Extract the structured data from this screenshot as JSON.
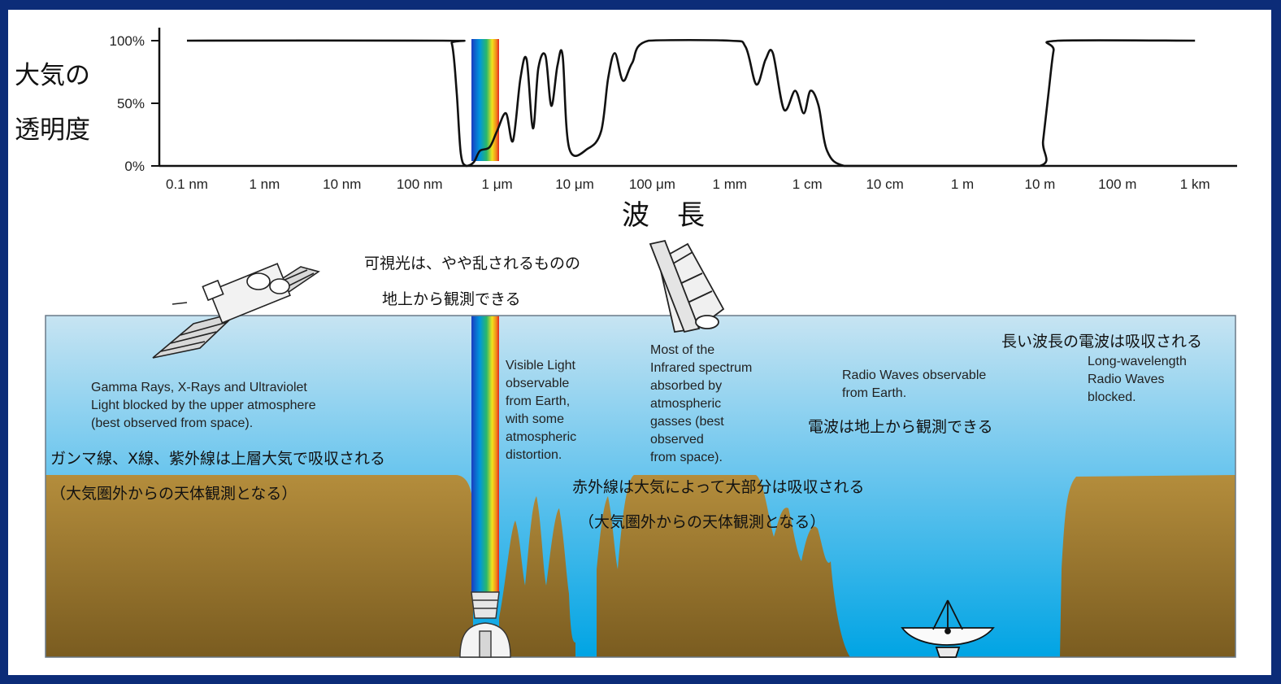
{
  "chart": {
    "ylabel_line1": "大気の",
    "ylabel_line2": "透明度",
    "xlabel": "波　長",
    "y_ticks": [
      "100%",
      "50%",
      "0%"
    ],
    "x_ticks": [
      "0.1 nm",
      "1 nm",
      "10 nm",
      "100 nm",
      "1 μm",
      "10 μm",
      "100 μm",
      "1 mm",
      "1 cm",
      "10 cm",
      "1 m",
      "10 m",
      "100 m",
      "1 km"
    ]
  },
  "chart_data": {
    "type": "line",
    "title": "",
    "xlabel": "波　長",
    "ylabel": "大気の透明度",
    "x_scale": "log",
    "x_unit": "m",
    "ylim": [
      0,
      100
    ],
    "y_unit": "%",
    "series": [
      {
        "points": [
          [
            1e-10,
            100
          ],
          [
            2e-07,
            100
          ],
          [
            2.6e-07,
            98
          ],
          [
            3e-07,
            60
          ],
          [
            3.4e-07,
            10
          ],
          [
            4e-07,
            0
          ],
          [
            5e-07,
            3
          ],
          [
            6e-07,
            12
          ],
          [
            8e-07,
            15
          ],
          [
            1e-06,
            28
          ],
          [
            1.3e-06,
            42
          ],
          [
            1.6e-06,
            20
          ],
          [
            2e-06,
            70
          ],
          [
            2.4e-06,
            85
          ],
          [
            2.9e-06,
            30
          ],
          [
            3.4e-06,
            78
          ],
          [
            4.2e-06,
            88
          ],
          [
            5e-06,
            48
          ],
          [
            6e-06,
            80
          ],
          [
            7e-06,
            88
          ],
          [
            8.5e-06,
            14
          ],
          [
            1.5e-05,
            14
          ],
          [
            2.2e-05,
            28
          ],
          [
            2.7e-05,
            70
          ],
          [
            3.3e-05,
            90
          ],
          [
            4.2e-05,
            68
          ],
          [
            5.5e-05,
            82
          ],
          [
            9e-05,
            100
          ],
          [
            0.001,
            100
          ],
          [
            0.0016,
            95
          ],
          [
            0.0022,
            65
          ],
          [
            0.0029,
            85
          ],
          [
            0.0036,
            90
          ],
          [
            0.005,
            45
          ],
          [
            0.007,
            60
          ],
          [
            0.009,
            42
          ],
          [
            0.011,
            60
          ],
          [
            0.014,
            48
          ],
          [
            0.018,
            12
          ],
          [
            0.03,
            0
          ],
          [
            0.1,
            0
          ],
          [
            1,
            0
          ],
          [
            10,
            0
          ],
          [
            11,
            20
          ],
          [
            13,
            60
          ],
          [
            15,
            92
          ],
          [
            17,
            100
          ],
          [
            1000,
            100
          ]
        ]
      }
    ]
  },
  "captions": {
    "gamma_en": [
      "Gamma Rays, X-Rays and Ultraviolet",
      "Light blocked by the upper atmosphere",
      "(best observed from space)."
    ],
    "gamma_jp_1": "ガンマ線、X線、紫外線は上層大気で吸収される",
    "gamma_jp_2": "（大気圏外からの天体観測となる）",
    "visible_jp_1": "可視光は、やや乱されるものの",
    "visible_jp_2": "地上から観測できる",
    "visible_en": [
      "Visible Light",
      "observable",
      "from Earth,",
      "with some",
      "atmospheric",
      "distortion."
    ],
    "infrared_en": [
      "Most of the",
      "Infrared spectrum",
      "absorbed by",
      "atmospheric",
      "gasses (best",
      "observed",
      "from space)."
    ],
    "infrared_jp_1": "赤外線は大気によって大部分は吸収される",
    "infrared_jp_2": "（大気圏外からの天体観測となる）",
    "radio_en": [
      "Radio Waves observable",
      "from Earth."
    ],
    "radio_jp": "電波は地上から観測できる",
    "long_jp": "長い波長の電波は吸収される",
    "long_en": [
      "Long-wavelength",
      "Radio Waves",
      "blocked."
    ]
  },
  "colors": {
    "frame": "#0c2c78",
    "sky_top": "#bfe0f0",
    "sky_bottom": "#00a8e6",
    "ground_top": "#b08a3a",
    "ground_bottom": "#7d5f22",
    "spectrum": [
      "#1a3cc0",
      "#00a0e0",
      "#22b070",
      "#f0e020",
      "#f08020",
      "#e02020"
    ]
  }
}
